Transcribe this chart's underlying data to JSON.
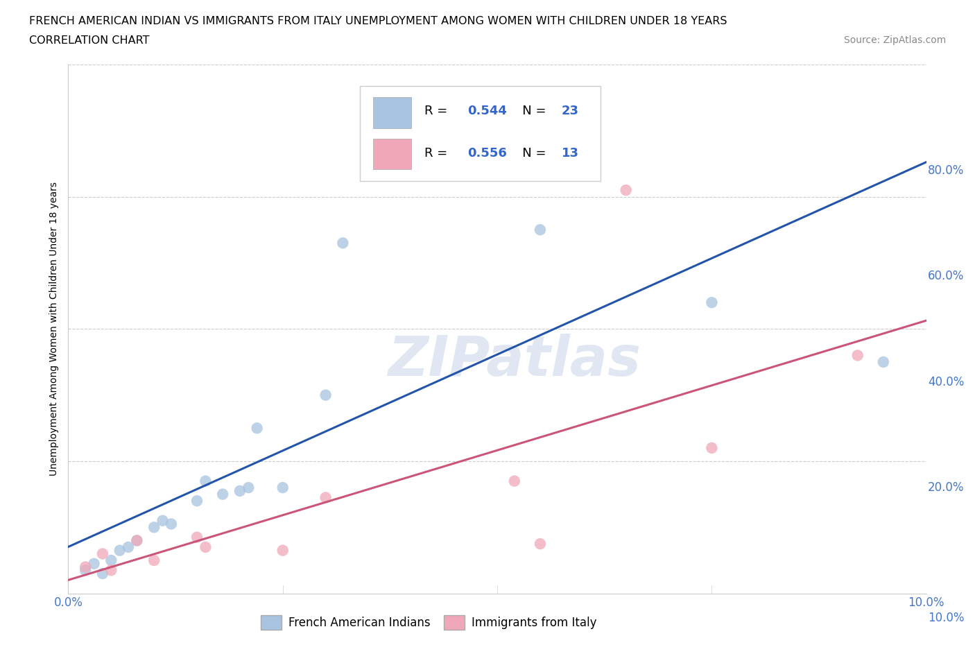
{
  "title_line1": "FRENCH AMERICAN INDIAN VS IMMIGRANTS FROM ITALY UNEMPLOYMENT AMONG WOMEN WITH CHILDREN UNDER 18 YEARS",
  "title_line2": "CORRELATION CHART",
  "source": "Source: ZipAtlas.com",
  "ylabel": "Unemployment Among Women with Children Under 18 years",
  "watermark": "ZIPatlas",
  "blue_R": 0.544,
  "blue_N": 23,
  "pink_R": 0.556,
  "pink_N": 13,
  "blue_label": "French American Indians",
  "pink_label": "Immigrants from Italy",
  "blue_color": "#a8c4e0",
  "pink_color": "#f0a8b8",
  "blue_line_color": "#2255aa",
  "pink_line_color": "#cc5577",
  "blue_scatter_x": [
    0.2,
    0.3,
    0.4,
    0.5,
    0.6,
    0.7,
    0.8,
    1.0,
    1.1,
    1.2,
    1.5,
    1.6,
    1.8,
    2.0,
    2.1,
    2.2,
    2.5,
    3.0,
    3.2,
    4.5,
    5.5,
    7.5,
    9.5
  ],
  "blue_scatter_y": [
    3.5,
    4.5,
    3.0,
    5.0,
    6.5,
    7.0,
    8.0,
    10.0,
    11.0,
    10.5,
    14.0,
    17.0,
    15.0,
    15.5,
    16.0,
    25.0,
    16.0,
    30.0,
    53.0,
    70.0,
    55.0,
    44.0,
    35.0
  ],
  "pink_scatter_x": [
    0.2,
    0.4,
    0.5,
    0.8,
    1.0,
    1.5,
    1.6,
    2.5,
    3.0,
    5.2,
    5.5,
    7.5,
    9.2
  ],
  "pink_scatter_y": [
    4.0,
    6.0,
    3.5,
    8.0,
    5.0,
    8.5,
    7.0,
    6.5,
    14.5,
    17.0,
    7.5,
    22.0,
    36.0
  ],
  "pink_outlier_x": 6.5,
  "pink_outlier_y": 61.0,
  "xlim": [
    0,
    10
  ],
  "ylim": [
    0,
    80
  ],
  "xtick_vals": [
    0.0,
    2.5,
    5.0,
    7.5,
    10.0
  ],
  "xticklabels": [
    "0.0%",
    "",
    "",
    "",
    "10.0%"
  ],
  "ytick_vals": [
    0,
    20,
    40,
    60,
    80
  ],
  "yticklabels": [
    "",
    "20.0%",
    "40.0%",
    "60.0%",
    "80.0%"
  ],
  "grid_color": "#cccccc",
  "background_color": "#ffffff",
  "title_fontsize": 11.5,
  "axis_label_fontsize": 10,
  "tick_fontsize": 12,
  "source_fontsize": 10,
  "marker_size": 140,
  "blue_intercept": 12.0,
  "blue_slope": 4.0,
  "pink_intercept": -2.0,
  "pink_slope": 4.1
}
